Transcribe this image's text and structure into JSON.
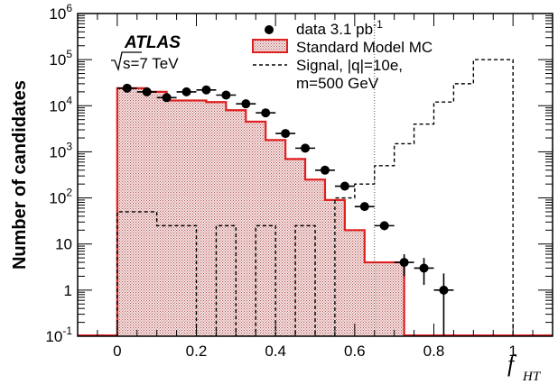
{
  "chart_data": {
    "type": "histogram",
    "experiment_label": "ATLAS",
    "energy_label_root": "s=7 TeV",
    "xlabel_main": "f",
    "xlabel_sub": "HT",
    "ylabel": "Number of candidates",
    "xlim": [
      -0.1,
      1.1
    ],
    "ylim": [
      0.1,
      1000000
    ],
    "yscale": "log",
    "xticks": [
      {
        "value": 0,
        "label": "0"
      },
      {
        "value": 0.2,
        "label": "0.2"
      },
      {
        "value": 0.4,
        "label": "0.4"
      },
      {
        "value": 0.6,
        "label": "0.6"
      },
      {
        "value": 0.8,
        "label": "0.8"
      },
      {
        "value": 1.0,
        "label": "1"
      }
    ],
    "yticks": [
      {
        "value": 0.1,
        "base": "10",
        "exp": "-1"
      },
      {
        "value": 1,
        "base": "1",
        "exp": ""
      },
      {
        "value": 10,
        "base": "10",
        "exp": ""
      },
      {
        "value": 100,
        "base": "10",
        "exp": "2"
      },
      {
        "value": 1000,
        "base": "10",
        "exp": "3"
      },
      {
        "value": 10000,
        "base": "10",
        "exp": "4"
      },
      {
        "value": 100000,
        "base": "10",
        "exp": "5"
      },
      {
        "value": 1000000,
        "base": "10",
        "exp": "6"
      }
    ],
    "cut_line_x": 0.65,
    "legend": [
      {
        "kind": "marker",
        "text": "data 3.1 pb",
        "sup": "-1"
      },
      {
        "kind": "hatched-box",
        "text": "Standard Model MC",
        "sup": ""
      },
      {
        "kind": "dashed-line",
        "text": "Signal, |q|=10e,",
        "sup": ""
      },
      {
        "kind": "none",
        "text": "m=500 GeV",
        "sup": ""
      }
    ],
    "series": [
      {
        "name": "Standard Model MC",
        "style": "filled-histogram",
        "color": "#e02020",
        "fill": "#f3d6d6",
        "bin_edges": [
          0,
          0.075,
          0.125,
          0.225,
          0.275,
          0.325,
          0.375,
          0.425,
          0.475,
          0.525,
          0.575,
          0.625,
          0.675,
          0.725
        ],
        "values": [
          24000,
          20000,
          13000,
          12000,
          8000,
          4500,
          1800,
          700,
          250,
          90,
          20,
          4,
          4
        ]
      },
      {
        "name": "data 3.1 pb-1",
        "style": "points-with-errors",
        "color": "#000000",
        "points": [
          {
            "x": 0.025,
            "y": 24000,
            "xerr": 0.025,
            "ylo": 23000,
            "yhi": 25000
          },
          {
            "x": 0.075,
            "y": 20000,
            "xerr": 0.025,
            "ylo": 19000,
            "yhi": 21000
          },
          {
            "x": 0.125,
            "y": 15000,
            "xerr": 0.025,
            "ylo": 14300,
            "yhi": 15800
          },
          {
            "x": 0.175,
            "y": 20000,
            "xerr": 0.025,
            "ylo": 19000,
            "yhi": 21000
          },
          {
            "x": 0.225,
            "y": 22000,
            "xerr": 0.025,
            "ylo": 21000,
            "yhi": 23000
          },
          {
            "x": 0.275,
            "y": 17000,
            "xerr": 0.025,
            "ylo": 16200,
            "yhi": 17800
          },
          {
            "x": 0.325,
            "y": 11000,
            "xerr": 0.025,
            "ylo": 10400,
            "yhi": 11600
          },
          {
            "x": 0.375,
            "y": 7000,
            "xerr": 0.025,
            "ylo": 6600,
            "yhi": 7400
          },
          {
            "x": 0.425,
            "y": 2500,
            "xerr": 0.025,
            "ylo": 2300,
            "yhi": 2700
          },
          {
            "x": 0.475,
            "y": 1200,
            "xerr": 0.025,
            "ylo": 1100,
            "yhi": 1300
          },
          {
            "x": 0.525,
            "y": 400,
            "xerr": 0.025,
            "ylo": 360,
            "yhi": 440
          },
          {
            "x": 0.575,
            "y": 180,
            "xerr": 0.025,
            "ylo": 155,
            "yhi": 205
          },
          {
            "x": 0.625,
            "y": 65,
            "xerr": 0.025,
            "ylo": 55,
            "yhi": 75
          },
          {
            "x": 0.675,
            "y": 25,
            "xerr": 0.025,
            "ylo": 20,
            "yhi": 30
          },
          {
            "x": 0.725,
            "y": 4,
            "xerr": 0.025,
            "ylo": 2,
            "yhi": 6
          },
          {
            "x": 0.775,
            "y": 3,
            "xerr": 0.025,
            "ylo": 1.3,
            "yhi": 5
          },
          {
            "x": 0.825,
            "y": 1,
            "xerr": 0.025,
            "ylo": 0.1,
            "yhi": 2.3
          }
        ]
      },
      {
        "name": "Signal, |q|=10e, m=500 GeV",
        "style": "dashed-histogram",
        "color": "#000000",
        "bin_edges": [
          0,
          0.1,
          0.2,
          0.25,
          0.3,
          0.35,
          0.4,
          0.45,
          0.5,
          0.55,
          0.6,
          0.65,
          0.7,
          0.75,
          0.8,
          0.85,
          0.9,
          0.95,
          1.0
        ],
        "values": [
          50,
          25,
          0.1,
          25,
          0.1,
          25,
          0.1,
          25,
          0.1,
          100,
          200,
          500,
          1500,
          4000,
          12000,
          30000,
          100000,
          100000
        ]
      }
    ]
  }
}
